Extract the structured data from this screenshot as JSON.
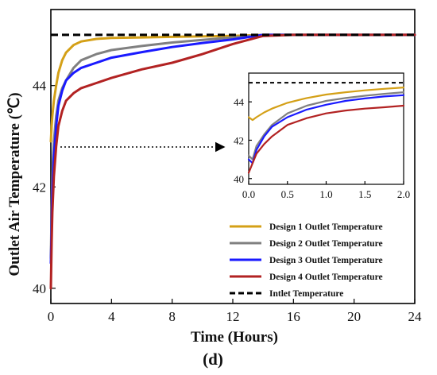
{
  "chart_data": [
    {
      "type": "line",
      "xlabel": "Time (Hours)",
      "ylabel": "Outlet Air Temperature (℃)",
      "panel_label": "(d)",
      "xlim": [
        0,
        24
      ],
      "ylim": [
        39.7,
        45.5
      ],
      "x_ticks": [
        0,
        4,
        8,
        12,
        16,
        20,
        24
      ],
      "y_ticks": [
        40,
        42,
        44
      ],
      "series": [
        {
          "name": "Design 1 Outlet Temperature",
          "color": "#d4a017",
          "x": [
            0,
            0.05,
            0.1,
            0.2,
            0.35,
            0.5,
            0.75,
            1,
            1.5,
            2,
            3,
            4,
            6,
            8,
            10,
            12,
            14,
            16,
            24
          ],
          "y": [
            42.9,
            43.2,
            43.4,
            43.7,
            44.0,
            44.25,
            44.5,
            44.65,
            44.8,
            44.87,
            44.92,
            44.94,
            44.95,
            44.96,
            44.97,
            44.98,
            45.0,
            45.0,
            45.0
          ]
        },
        {
          "name": "Design 2 Outlet Temperature",
          "color": "#808080",
          "x": [
            0,
            0.05,
            0.1,
            0.2,
            0.35,
            0.5,
            0.75,
            1,
            1.5,
            2,
            3,
            4,
            6,
            8,
            10,
            12,
            14,
            16,
            24
          ],
          "y": [
            40.6,
            41.6,
            42.3,
            42.9,
            43.4,
            43.7,
            43.95,
            44.1,
            44.35,
            44.5,
            44.62,
            44.7,
            44.78,
            44.85,
            44.9,
            44.95,
            45.0,
            45.0,
            45.0
          ]
        },
        {
          "name": "Design 3 Outlet Temperature",
          "color": "#1a1aff",
          "x": [
            0,
            0.05,
            0.1,
            0.2,
            0.35,
            0.5,
            0.75,
            1,
            1.5,
            2,
            3,
            4,
            6,
            8,
            10,
            12,
            14,
            16,
            24
          ],
          "y": [
            40.5,
            41.2,
            41.9,
            42.6,
            43.2,
            43.6,
            43.9,
            44.1,
            44.25,
            44.35,
            44.45,
            44.55,
            44.66,
            44.76,
            44.84,
            44.91,
            45.0,
            45.0,
            45.0
          ]
        },
        {
          "name": "Design 4 Outlet Temperature",
          "color": "#b22222",
          "x": [
            0,
            0.05,
            0.1,
            0.2,
            0.35,
            0.5,
            0.75,
            1,
            1.5,
            2,
            3,
            4,
            6,
            8,
            10,
            12,
            14,
            16,
            24
          ],
          "y": [
            40.0,
            40.9,
            41.5,
            42.2,
            42.8,
            43.2,
            43.5,
            43.7,
            43.85,
            43.95,
            44.05,
            44.15,
            44.32,
            44.45,
            44.62,
            44.82,
            44.98,
            45.0,
            45.0
          ]
        },
        {
          "name": "Intlet Temperature",
          "color": "#000000",
          "dashed": true,
          "x": [
            0,
            24
          ],
          "y": [
            45.0,
            45.0
          ]
        }
      ],
      "legend": "lower-right"
    },
    {
      "type": "line",
      "role": "inset",
      "xlim": [
        0,
        2.0
      ],
      "ylim": [
        39.7,
        45.5
      ],
      "x_ticks": [
        "0.0",
        "0.5",
        "1.0",
        "1.5",
        "2.0"
      ],
      "y_ticks": [
        40,
        42,
        44
      ],
      "series": [
        {
          "color": "#d4a017",
          "x": [
            0,
            0.05,
            0.1,
            0.2,
            0.3,
            0.5,
            0.75,
            1.0,
            1.25,
            1.5,
            1.75,
            2.0
          ],
          "y": [
            43.2,
            43.05,
            43.2,
            43.45,
            43.65,
            43.95,
            44.2,
            44.38,
            44.5,
            44.6,
            44.68,
            44.75
          ]
        },
        {
          "color": "#808080",
          "x": [
            0,
            0.05,
            0.1,
            0.2,
            0.3,
            0.5,
            0.75,
            1.0,
            1.25,
            1.5,
            1.75,
            2.0
          ],
          "y": [
            41.2,
            41.0,
            41.7,
            42.3,
            42.8,
            43.4,
            43.8,
            44.05,
            44.2,
            44.32,
            44.42,
            44.5
          ]
        },
        {
          "color": "#1a1aff",
          "x": [
            0,
            0.05,
            0.1,
            0.2,
            0.3,
            0.5,
            0.75,
            1.0,
            1.25,
            1.5,
            1.75,
            2.0
          ],
          "y": [
            41.0,
            40.8,
            41.5,
            42.2,
            42.7,
            43.2,
            43.6,
            43.85,
            44.05,
            44.18,
            44.28,
            44.35
          ]
        },
        {
          "color": "#b22222",
          "x": [
            0,
            0.05,
            0.1,
            0.2,
            0.3,
            0.5,
            0.75,
            1.0,
            1.25,
            1.5,
            1.75,
            2.0
          ],
          "y": [
            40.3,
            40.8,
            41.3,
            41.8,
            42.2,
            42.8,
            43.15,
            43.4,
            43.55,
            43.65,
            43.72,
            43.8
          ]
        },
        {
          "color": "#000000",
          "dashed": true,
          "x": [
            0,
            2.0
          ],
          "y": [
            45.0,
            45.0
          ]
        }
      ]
    }
  ]
}
